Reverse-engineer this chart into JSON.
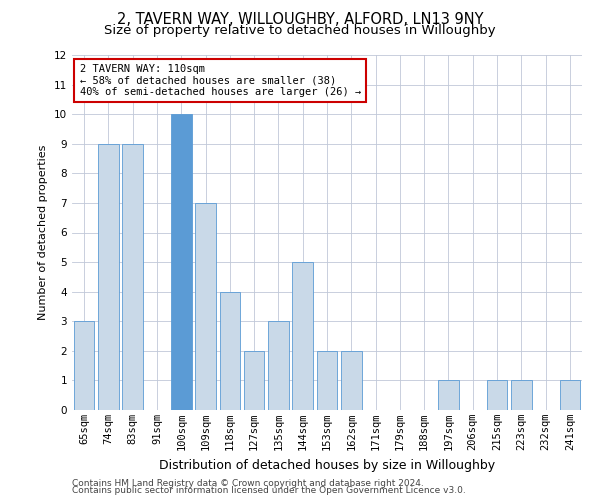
{
  "title": "2, TAVERN WAY, WILLOUGHBY, ALFORD, LN13 9NY",
  "subtitle": "Size of property relative to detached houses in Willoughby",
  "xlabel": "Distribution of detached houses by size in Willoughby",
  "ylabel": "Number of detached properties",
  "categories": [
    "65sqm",
    "74sqm",
    "83sqm",
    "91sqm",
    "100sqm",
    "109sqm",
    "118sqm",
    "127sqm",
    "135sqm",
    "144sqm",
    "153sqm",
    "162sqm",
    "171sqm",
    "179sqm",
    "188sqm",
    "197sqm",
    "206sqm",
    "215sqm",
    "223sqm",
    "232sqm",
    "241sqm"
  ],
  "values": [
    3,
    9,
    9,
    0,
    10,
    7,
    4,
    2,
    3,
    5,
    2,
    2,
    0,
    0,
    0,
    1,
    0,
    1,
    1,
    0,
    1
  ],
  "bar_color_default": "#c9d9e8",
  "bar_color_highlight": "#5b9bd5",
  "bar_edge_color": "#5b9bd5",
  "highlight_index": 4,
  "annotation_text": "2 TAVERN WAY: 110sqm\n← 58% of detached houses are smaller (38)\n40% of semi-detached houses are larger (26) →",
  "annotation_box_color": "#ffffff",
  "annotation_box_edge": "#cc0000",
  "ylim": [
    0,
    12
  ],
  "yticks": [
    0,
    1,
    2,
    3,
    4,
    5,
    6,
    7,
    8,
    9,
    10,
    11,
    12
  ],
  "grid_color": "#c0c8d8",
  "background_color": "#ffffff",
  "footer1": "Contains HM Land Registry data © Crown copyright and database right 2024.",
  "footer2": "Contains public sector information licensed under the Open Government Licence v3.0.",
  "title_fontsize": 10.5,
  "subtitle_fontsize": 9.5,
  "xlabel_fontsize": 9,
  "ylabel_fontsize": 8,
  "tick_fontsize": 7.5,
  "footer_fontsize": 6.5,
  "annot_fontsize": 7.5
}
